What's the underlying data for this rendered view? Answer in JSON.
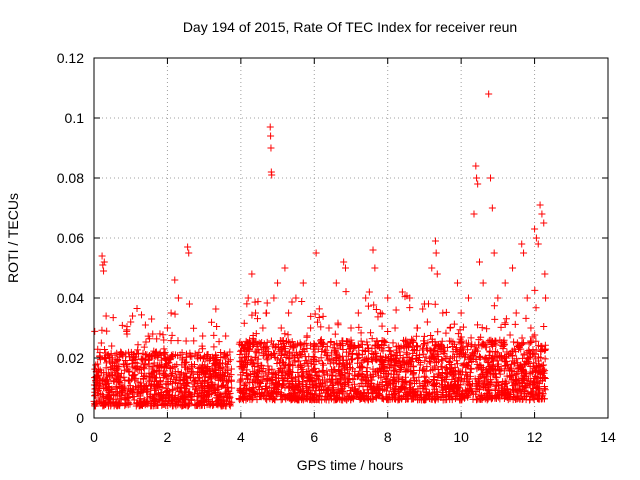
{
  "chart_data": {
    "type": "scatter",
    "title": "Day 194 of 2015, Rate Of TEC Index for receiver reun",
    "xlabel": "GPS time / hours",
    "ylabel": "ROTI / TECUs",
    "xlim": [
      0,
      14
    ],
    "ylim": [
      0,
      0.12
    ],
    "grid": true,
    "marker": "+",
    "color": "#ff0000",
    "x_ticks": [
      0,
      2,
      4,
      6,
      8,
      10,
      12,
      14
    ],
    "x_tick_labels": [
      "0",
      "2",
      "4",
      "6",
      "8",
      "10",
      "12",
      "14"
    ],
    "y_ticks": [
      0,
      0.02,
      0.04,
      0.06,
      0.08,
      0.1,
      0.12
    ],
    "y_tick_labels": [
      "0",
      "0.02",
      "0.04",
      "0.06",
      "0.08",
      "0.1",
      "0.12"
    ],
    "series": [
      {
        "name": "ROTI",
        "points": [
          [
            0.05,
            0.012
          ],
          [
            0.1,
            0.018
          ],
          [
            0.15,
            0.01
          ],
          [
            0.2,
            0.025
          ],
          [
            0.22,
            0.054
          ],
          [
            0.24,
            0.051
          ],
          [
            0.26,
            0.049
          ],
          [
            0.28,
            0.052
          ],
          [
            0.3,
            0.02
          ],
          [
            0.33,
            0.034
          ],
          [
            0.4,
            0.015
          ],
          [
            0.5,
            0.02
          ],
          [
            0.6,
            0.013
          ],
          [
            0.7,
            0.008
          ],
          [
            0.8,
            0.018
          ],
          [
            0.9,
            0.028
          ],
          [
            1.0,
            0.032
          ],
          [
            1.05,
            0.034
          ],
          [
            1.2,
            0.012
          ],
          [
            1.4,
            0.031
          ],
          [
            1.5,
            0.018
          ],
          [
            1.6,
            0.028
          ],
          [
            1.7,
            0.022
          ],
          [
            1.8,
            0.012
          ],
          [
            1.9,
            0.026
          ],
          [
            2.0,
            0.03
          ],
          [
            2.1,
            0.035
          ],
          [
            2.2,
            0.046
          ],
          [
            2.3,
            0.04
          ],
          [
            2.4,
            0.02
          ],
          [
            2.55,
            0.057
          ],
          [
            2.58,
            0.055
          ],
          [
            2.6,
            0.038
          ],
          [
            2.7,
            0.015
          ],
          [
            2.9,
            0.02
          ],
          [
            3.1,
            0.012
          ],
          [
            3.3,
            0.018
          ],
          [
            3.5,
            0.015
          ],
          [
            3.7,
            0.022
          ],
          [
            3.75,
            0.01
          ],
          [
            4.0,
            0.012
          ],
          [
            4.1,
            0.02
          ],
          [
            4.2,
            0.04
          ],
          [
            4.3,
            0.048
          ],
          [
            4.4,
            0.035
          ],
          [
            4.5,
            0.025
          ],
          [
            4.6,
            0.03
          ],
          [
            4.7,
            0.035
          ],
          [
            4.8,
            0.097
          ],
          [
            4.81,
            0.094
          ],
          [
            4.82,
            0.09
          ],
          [
            4.83,
            0.082
          ],
          [
            4.84,
            0.081
          ],
          [
            4.9,
            0.04
          ],
          [
            5.0,
            0.045
          ],
          [
            5.1,
            0.03
          ],
          [
            5.2,
            0.05
          ],
          [
            5.3,
            0.035
          ],
          [
            5.5,
            0.04
          ],
          [
            5.7,
            0.045
          ],
          [
            5.9,
            0.03
          ],
          [
            6.05,
            0.055
          ],
          [
            6.2,
            0.025
          ],
          [
            6.4,
            0.03
          ],
          [
            6.6,
            0.045
          ],
          [
            6.8,
            0.052
          ],
          [
            6.85,
            0.05
          ],
          [
            7.0,
            0.03
          ],
          [
            7.2,
            0.035
          ],
          [
            7.4,
            0.04
          ],
          [
            7.5,
            0.042
          ],
          [
            7.6,
            0.056
          ],
          [
            7.65,
            0.05
          ],
          [
            7.8,
            0.035
          ],
          [
            8.0,
            0.04
          ],
          [
            8.2,
            0.03
          ],
          [
            8.4,
            0.042
          ],
          [
            8.6,
            0.04
          ],
          [
            8.8,
            0.03
          ],
          [
            9.0,
            0.038
          ],
          [
            9.2,
            0.05
          ],
          [
            9.3,
            0.059
          ],
          [
            9.32,
            0.055
          ],
          [
            9.35,
            0.048
          ],
          [
            9.5,
            0.035
          ],
          [
            9.7,
            0.03
          ],
          [
            9.9,
            0.045
          ],
          [
            10.0,
            0.035
          ],
          [
            10.2,
            0.04
          ],
          [
            10.35,
            0.068
          ],
          [
            10.4,
            0.084
          ],
          [
            10.42,
            0.08
          ],
          [
            10.45,
            0.078
          ],
          [
            10.5,
            0.052
          ],
          [
            10.6,
            0.045
          ],
          [
            10.75,
            0.108
          ],
          [
            10.8,
            0.08
          ],
          [
            10.85,
            0.07
          ],
          [
            10.9,
            0.055
          ],
          [
            11.0,
            0.04
          ],
          [
            11.2,
            0.045
          ],
          [
            11.4,
            0.05
          ],
          [
            11.5,
            0.035
          ],
          [
            11.65,
            0.058
          ],
          [
            11.7,
            0.055
          ],
          [
            11.8,
            0.04
          ],
          [
            11.9,
            0.03
          ],
          [
            12.0,
            0.063
          ],
          [
            12.05,
            0.06
          ],
          [
            12.1,
            0.058
          ],
          [
            12.15,
            0.071
          ],
          [
            12.2,
            0.068
          ],
          [
            12.25,
            0.065
          ],
          [
            12.28,
            0.048
          ],
          [
            12.3,
            0.04
          ]
        ],
        "band_segments": [
          {
            "x_start": 0.0,
            "x_end": 3.75,
            "base": 0.004,
            "top": 0.022
          },
          {
            "x_start": 3.95,
            "x_end": 12.3,
            "base": 0.006,
            "top": 0.026
          }
        ]
      }
    ]
  }
}
